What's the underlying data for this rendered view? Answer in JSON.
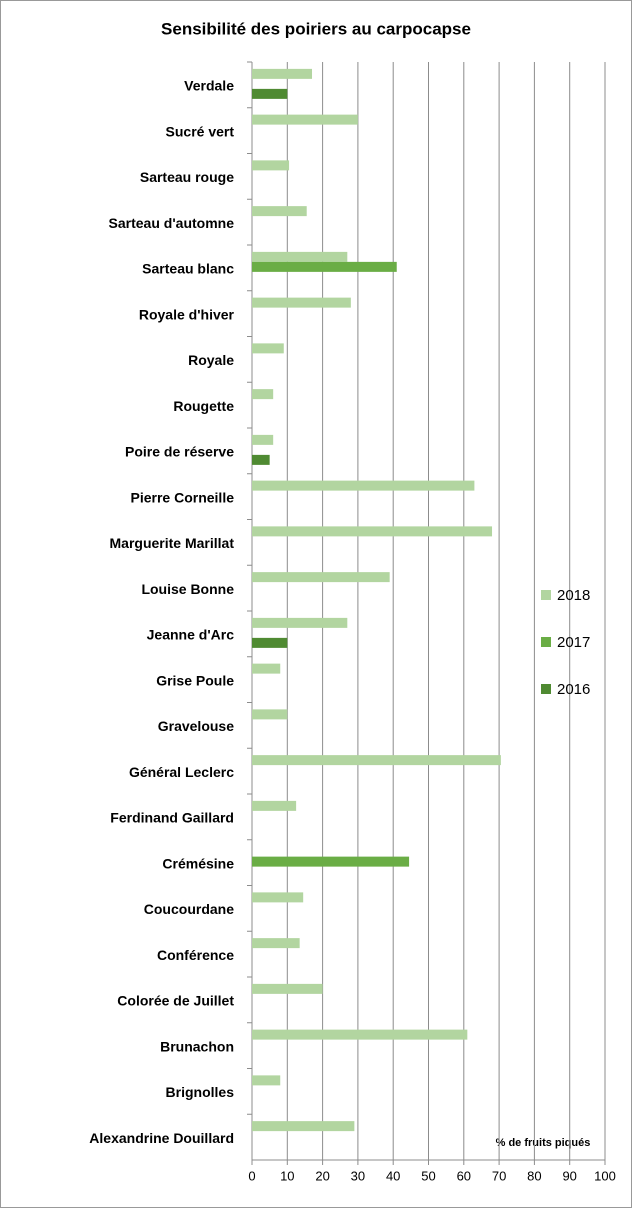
{
  "chart_data": {
    "type": "bar",
    "orientation": "horizontal",
    "title": "Sensibilité des poiriers au carpocapse",
    "annotation": "% de fruits piqués",
    "categories": [
      "Verdale",
      "Sucré vert",
      "Sarteau rouge",
      "Sarteau d'automne",
      "Sarteau blanc",
      "Royale d'hiver",
      "Royale",
      "Rougette",
      "Poire de réserve",
      "Pierre  Corneille",
      "Marguerite Marillat",
      "Louise Bonne",
      "Jeanne d'Arc",
      "Grise Poule",
      "Gravelouse",
      "Général Leclerc",
      "Ferdinand Gaillard",
      "Crémésine",
      "Coucourdane",
      "Conférence",
      "Colorée de Juillet",
      "Brunachon",
      "Brignolles",
      "Alexandrine Douillard"
    ],
    "series": [
      {
        "name": "2018",
        "color": "#b2d5a0",
        "values": [
          17,
          30,
          10.5,
          15.5,
          27,
          28,
          9,
          6,
          6,
          63,
          68,
          39,
          27,
          8,
          10,
          70.5,
          12.5,
          null,
          14.5,
          13.5,
          20,
          61,
          8,
          29
        ]
      },
      {
        "name": "2017",
        "color": "#6aad45",
        "values": [
          null,
          null,
          null,
          null,
          41,
          null,
          null,
          null,
          null,
          null,
          null,
          null,
          null,
          null,
          null,
          null,
          null,
          44.5,
          null,
          null,
          null,
          null,
          null,
          null
        ]
      },
      {
        "name": "2016",
        "color": "#4f8a32",
        "values": [
          10,
          null,
          null,
          null,
          null,
          null,
          null,
          null,
          5,
          null,
          null,
          null,
          10,
          null,
          null,
          null,
          null,
          null,
          null,
          null,
          null,
          null,
          null,
          null
        ]
      }
    ],
    "xlim": [
      0,
      100
    ],
    "xticks": [
      0,
      10,
      20,
      30,
      40,
      50,
      60,
      70,
      80,
      90,
      100
    ],
    "grid": true,
    "legend": "right"
  }
}
